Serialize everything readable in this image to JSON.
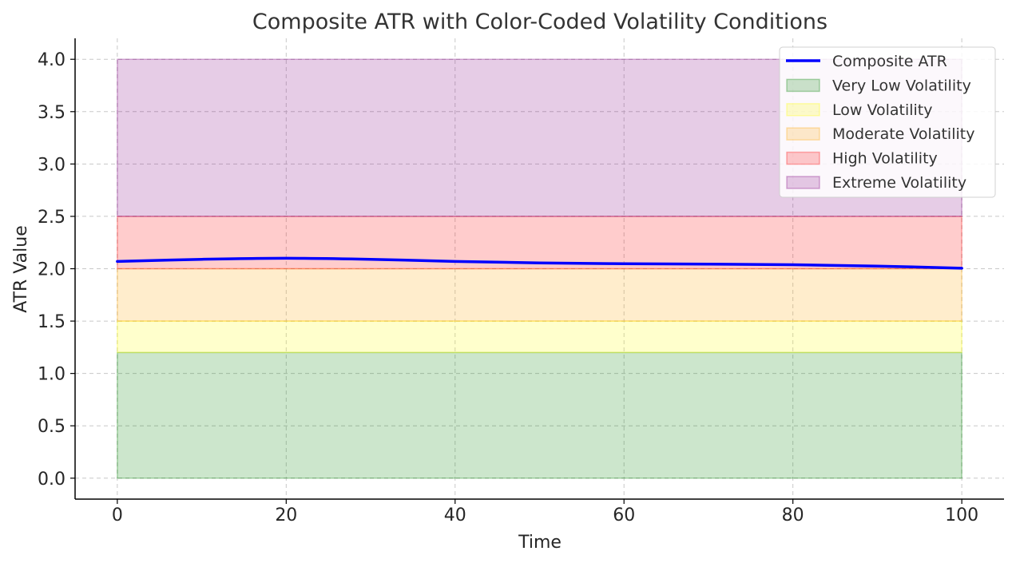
{
  "chart_data": {
    "type": "area",
    "title": "Composite ATR with Color-Coded Volatility Conditions",
    "xlabel": "Time",
    "ylabel": "ATR Value",
    "xlim": [
      -5,
      105
    ],
    "ylim": [
      -0.2,
      4.2
    ],
    "xticks": [
      0,
      20,
      40,
      60,
      80,
      100
    ],
    "xtick_labels": [
      "0",
      "20",
      "40",
      "60",
      "80",
      "100"
    ],
    "yticks": [
      0.0,
      0.5,
      1.0,
      1.5,
      2.0,
      2.5,
      3.0,
      3.5,
      4.0
    ],
    "ytick_labels": [
      "0.0",
      "0.5",
      "1.0",
      "1.5",
      "2.0",
      "2.5",
      "3.0",
      "3.5",
      "4.0"
    ],
    "grid": true,
    "legend_position": "top-right",
    "bands": [
      {
        "name": "Very Low Volatility",
        "x": [
          0,
          100
        ],
        "y_range": [
          0.0,
          1.2
        ],
        "color": "#008000"
      },
      {
        "name": "Low Volatility",
        "x": [
          0,
          100
        ],
        "y_range": [
          1.2,
          1.5
        ],
        "color": "#ffff00"
      },
      {
        "name": "Moderate Volatility",
        "x": [
          0,
          100
        ],
        "y_range": [
          1.5,
          2.0
        ],
        "color": "#ffa500"
      },
      {
        "name": "High Volatility",
        "x": [
          0,
          100
        ],
        "y_range": [
          2.0,
          2.5
        ],
        "color": "#ff0000"
      },
      {
        "name": "Extreme Volatility",
        "x": [
          0,
          100
        ],
        "y_range": [
          2.5,
          4.0
        ],
        "color": "#800080"
      }
    ],
    "series": [
      {
        "name": "Composite ATR",
        "color": "#0000ff",
        "x": [
          0,
          10,
          20,
          30,
          40,
          50,
          60,
          70,
          80,
          90,
          100
        ],
        "values": [
          2.07,
          2.09,
          2.1,
          2.09,
          2.07,
          2.055,
          2.048,
          2.044,
          2.038,
          2.025,
          2.005
        ]
      }
    ],
    "legend": [
      "Composite ATR",
      "Very Low Volatility",
      "Low Volatility",
      "Moderate Volatility",
      "High Volatility",
      "Extreme Volatility"
    ]
  }
}
